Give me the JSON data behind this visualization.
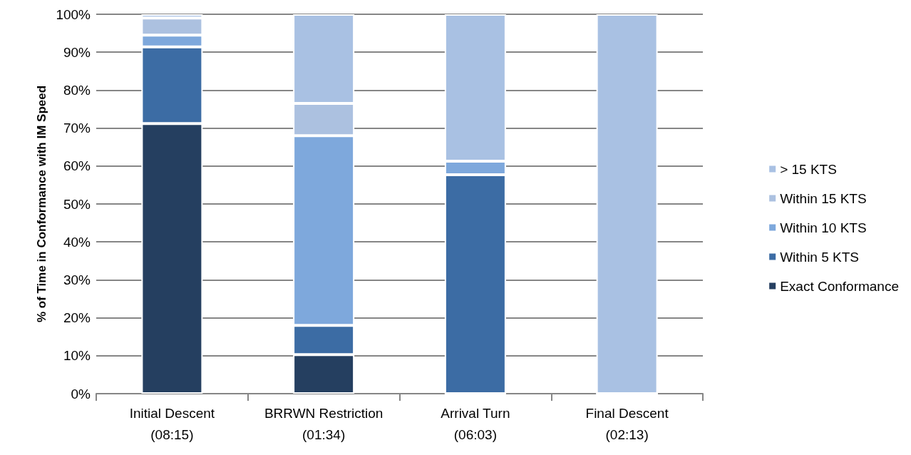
{
  "chart_data": {
    "type": "bar",
    "stacked": true,
    "ylabel": "% of Time in Conformance with IM Speed",
    "categories": [
      "Initial Descent\n(08:15)",
      "BRRWN Restriction\n(01:34)",
      "Arrival Turn\n(06:03)",
      "Final Descent\n(02:13)"
    ],
    "series": [
      {
        "name": "Exact Conformance",
        "color": "#253f60",
        "values": [
          71.2,
          10.3,
          0,
          0
        ]
      },
      {
        "name": "Within 5 KTS",
        "color": "#3c6ca4",
        "values": [
          20.2,
          7.7,
          57.7,
          0
        ]
      },
      {
        "name": "Within 10 KTS",
        "color": "#7ea8dc",
        "values": [
          3.1,
          50.0,
          3.6,
          0
        ]
      },
      {
        "name": "Within 15 KTS",
        "color": "#acc1e0",
        "values": [
          4.5,
          8.5,
          0,
          0
        ]
      },
      {
        "name": "> 15 KTS",
        "color": "#a9c1e3",
        "values": [
          1.0,
          23.5,
          38.7,
          100
        ]
      }
    ],
    "ylim": [
      0,
      100
    ],
    "yticks": [
      {
        "value": 0,
        "label": "0%"
      },
      {
        "value": 10,
        "label": "10%"
      },
      {
        "value": 20,
        "label": "20%"
      },
      {
        "value": 30,
        "label": "30%"
      },
      {
        "value": 40,
        "label": "40%"
      },
      {
        "value": 50,
        "label": "50%"
      },
      {
        "value": 60,
        "label": "60%"
      },
      {
        "value": 70,
        "label": "70%"
      },
      {
        "value": 80,
        "label": "80%"
      },
      {
        "value": 90,
        "label": "90%"
      },
      {
        "value": 100,
        "label": "100%"
      }
    ],
    "grid": "y",
    "legend": "right"
  }
}
